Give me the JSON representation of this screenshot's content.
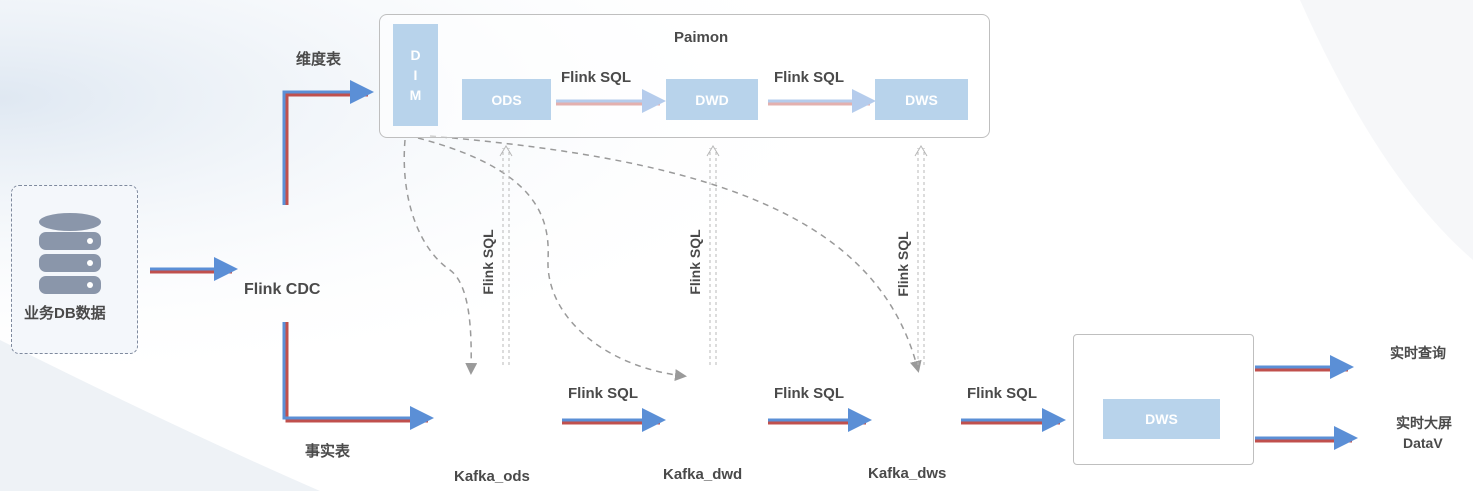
{
  "source": {
    "label": "业务DB数据",
    "icon": "database-icon"
  },
  "cdc": {
    "label": "Flink CDC"
  },
  "branches": {
    "dimension": "维度表",
    "fact": "事实表"
  },
  "paimon": {
    "title": "Paimon",
    "dim_letters": [
      "D",
      "I",
      "M"
    ],
    "layers": [
      "ODS",
      "DWD",
      "DWS"
    ],
    "transforms": [
      "Flink SQL",
      "Flink SQL"
    ]
  },
  "kafka": {
    "topics": [
      "Kafka_ods",
      "Kafka_dwd",
      "Kafka_dws"
    ],
    "transforms": [
      "Flink SQL",
      "Flink SQL",
      "Flink SQL"
    ],
    "sync_labels": [
      "Flink SQL",
      "Flink SQL",
      "Flink SQL"
    ]
  },
  "serving": {
    "layer": "DWS"
  },
  "outputs": [
    "实时查询",
    "实时大屏",
    "DataV"
  ],
  "colors": {
    "arrow": "#5b8fd6",
    "arrow_shadow": "#c0504d",
    "box": "#b8d3eb",
    "dashed": "#9a9a9a"
  }
}
